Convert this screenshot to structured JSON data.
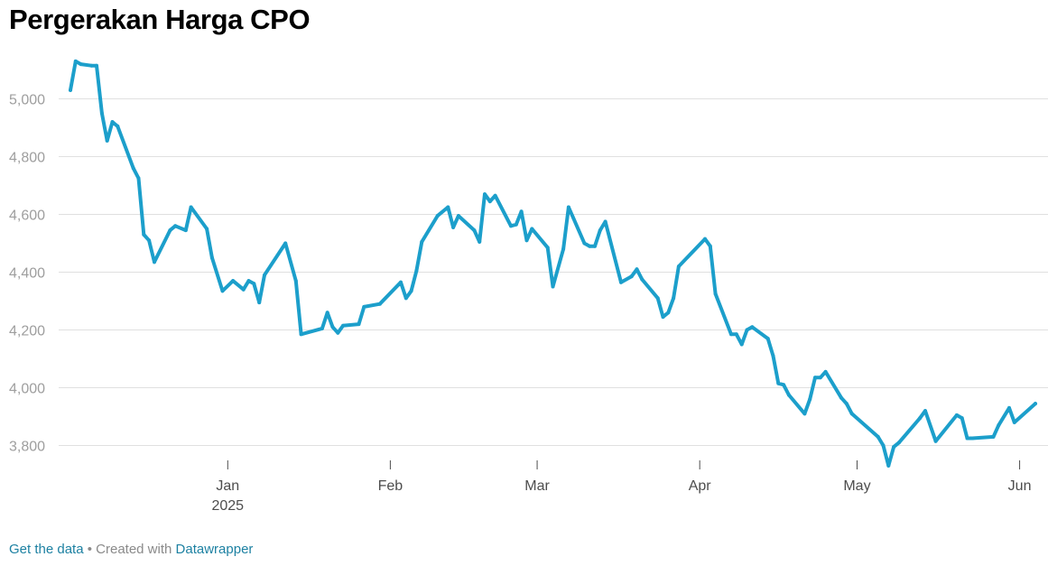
{
  "title": "Pergerakan Harga CPO",
  "footer": {
    "get_data": "Get the data",
    "separator": " • Created with ",
    "tool": "Datawrapper"
  },
  "colors": {
    "line": "#1c9fcb",
    "grid": "#e0e0e0",
    "link": "#1d81a2"
  },
  "chart_data": {
    "type": "line",
    "title": "Pergerakan Harga CPO",
    "xlabel": "",
    "ylabel": "",
    "grid": true,
    "legend": "none",
    "ylim": [
      3700,
      5150
    ],
    "xlim": [
      "2024-12-02",
      "2025-06-04"
    ],
    "y_ticks": [
      3800,
      4000,
      4200,
      4400,
      4600,
      4800,
      5000
    ],
    "y_tick_labels": [
      "3,800",
      "4,000",
      "4,200",
      "4,400",
      "4,600",
      "4,800",
      "5,000"
    ],
    "x_ticks": [
      {
        "date": "2025-01-01",
        "label": "Jan",
        "sublabel": "2025"
      },
      {
        "date": "2025-02-01",
        "label": "Feb",
        "sublabel": ""
      },
      {
        "date": "2025-03-01",
        "label": "Mar",
        "sublabel": ""
      },
      {
        "date": "2025-04-01",
        "label": "Apr",
        "sublabel": ""
      },
      {
        "date": "2025-05-01",
        "label": "May",
        "sublabel": ""
      },
      {
        "date": "2025-06-01",
        "label": "Jun",
        "sublabel": ""
      }
    ],
    "series": [
      {
        "values": [
          [
            "2024-12-02",
            5030
          ],
          [
            "2024-12-03",
            5130
          ],
          [
            "2024-12-04",
            5120
          ],
          [
            "2024-12-06",
            5115
          ],
          [
            "2024-12-07",
            5115
          ],
          [
            "2024-12-08",
            4950
          ],
          [
            "2024-12-09",
            4855
          ],
          [
            "2024-12-10",
            4920
          ],
          [
            "2024-12-11",
            4905
          ],
          [
            "2024-12-14",
            4760
          ],
          [
            "2024-12-15",
            4725
          ],
          [
            "2024-12-16",
            4530
          ],
          [
            "2024-12-17",
            4510
          ],
          [
            "2024-12-18",
            4435
          ],
          [
            "2024-12-21",
            4545
          ],
          [
            "2024-12-22",
            4560
          ],
          [
            "2024-12-24",
            4545
          ],
          [
            "2024-12-25",
            4625
          ],
          [
            "2024-12-28",
            4550
          ],
          [
            "2024-12-29",
            4450
          ],
          [
            "2024-12-31",
            4335
          ],
          [
            "2025-01-02",
            4370
          ],
          [
            "2025-01-04",
            4340
          ],
          [
            "2025-01-05",
            4370
          ],
          [
            "2025-01-06",
            4360
          ],
          [
            "2025-01-07",
            4295
          ],
          [
            "2025-01-08",
            4390
          ],
          [
            "2025-01-12",
            4500
          ],
          [
            "2025-01-14",
            4370
          ],
          [
            "2025-01-15",
            4185
          ],
          [
            "2025-01-19",
            4205
          ],
          [
            "2025-01-20",
            4260
          ],
          [
            "2025-01-21",
            4210
          ],
          [
            "2025-01-22",
            4190
          ],
          [
            "2025-01-23",
            4215
          ],
          [
            "2025-01-26",
            4220
          ],
          [
            "2025-01-27",
            4280
          ],
          [
            "2025-01-30",
            4290
          ],
          [
            "2025-02-03",
            4365
          ],
          [
            "2025-02-04",
            4310
          ],
          [
            "2025-02-05",
            4335
          ],
          [
            "2025-02-06",
            4405
          ],
          [
            "2025-02-07",
            4505
          ],
          [
            "2025-02-10",
            4595
          ],
          [
            "2025-02-12",
            4625
          ],
          [
            "2025-02-13",
            4555
          ],
          [
            "2025-02-14",
            4595
          ],
          [
            "2025-02-17",
            4545
          ],
          [
            "2025-02-18",
            4505
          ],
          [
            "2025-02-19",
            4670
          ],
          [
            "2025-02-20",
            4645
          ],
          [
            "2025-02-21",
            4665
          ],
          [
            "2025-02-24",
            4560
          ],
          [
            "2025-02-25",
            4565
          ],
          [
            "2025-02-26",
            4610
          ],
          [
            "2025-02-27",
            4510
          ],
          [
            "2025-02-28",
            4550
          ],
          [
            "2025-03-03",
            4485
          ],
          [
            "2025-03-04",
            4350
          ],
          [
            "2025-03-06",
            4480
          ],
          [
            "2025-03-07",
            4625
          ],
          [
            "2025-03-10",
            4500
          ],
          [
            "2025-03-11",
            4490
          ],
          [
            "2025-03-12",
            4490
          ],
          [
            "2025-03-13",
            4545
          ],
          [
            "2025-03-14",
            4575
          ],
          [
            "2025-03-17",
            4365
          ],
          [
            "2025-03-19",
            4385
          ],
          [
            "2025-03-20",
            4410
          ],
          [
            "2025-03-21",
            4375
          ],
          [
            "2025-03-24",
            4310
          ],
          [
            "2025-03-25",
            4245
          ],
          [
            "2025-03-26",
            4260
          ],
          [
            "2025-03-27",
            4310
          ],
          [
            "2025-03-28",
            4420
          ],
          [
            "2025-04-02",
            4515
          ],
          [
            "2025-04-03",
            4490
          ],
          [
            "2025-04-04",
            4325
          ],
          [
            "2025-04-07",
            4185
          ],
          [
            "2025-04-08",
            4185
          ],
          [
            "2025-04-09",
            4150
          ],
          [
            "2025-04-10",
            4200
          ],
          [
            "2025-04-11",
            4210
          ],
          [
            "2025-04-14",
            4170
          ],
          [
            "2025-04-15",
            4110
          ],
          [
            "2025-04-16",
            4015
          ],
          [
            "2025-04-17",
            4010
          ],
          [
            "2025-04-18",
            3975
          ],
          [
            "2025-04-21",
            3910
          ],
          [
            "2025-04-22",
            3960
          ],
          [
            "2025-04-23",
            4035
          ],
          [
            "2025-04-24",
            4035
          ],
          [
            "2025-04-25",
            4055
          ],
          [
            "2025-04-28",
            3965
          ],
          [
            "2025-04-29",
            3945
          ],
          [
            "2025-04-30",
            3910
          ],
          [
            "2025-05-05",
            3830
          ],
          [
            "2025-05-06",
            3800
          ],
          [
            "2025-05-07",
            3730
          ],
          [
            "2025-05-08",
            3795
          ],
          [
            "2025-05-09",
            3810
          ],
          [
            "2025-05-13",
            3895
          ],
          [
            "2025-05-14",
            3920
          ],
          [
            "2025-05-16",
            3815
          ],
          [
            "2025-05-20",
            3905
          ],
          [
            "2025-05-21",
            3895
          ],
          [
            "2025-05-22",
            3825
          ],
          [
            "2025-05-23",
            3825
          ],
          [
            "2025-05-27",
            3830
          ],
          [
            "2025-05-28",
            3870
          ],
          [
            "2025-05-30",
            3930
          ],
          [
            "2025-05-31",
            3880
          ],
          [
            "2025-06-04",
            3945
          ]
        ]
      }
    ]
  }
}
